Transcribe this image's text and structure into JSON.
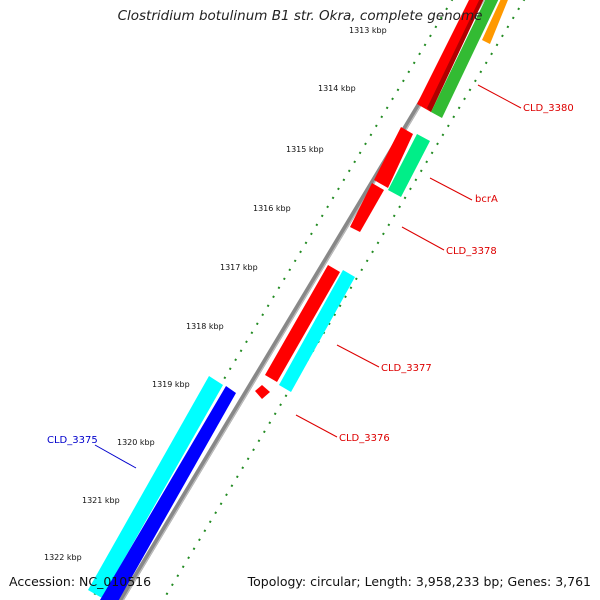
{
  "title": "Clostridium botulinum B1 str. Okra, complete genome",
  "accession_text": "Accession: NC_010516",
  "summary_text": "Topology: circular; Length: 3,958,233 bp; Genes: 3,761",
  "ticks": [
    "1313 kbp",
    "1314 kbp",
    "1315 kbp",
    "1316 kbp",
    "1317 kbp",
    "1318 kbp",
    "1319 kbp",
    "1320 kbp",
    "1321 kbp",
    "1322 kbp"
  ],
  "genes": [
    {
      "name": "CLD_3380",
      "label_color": "#dd0000"
    },
    {
      "name": "bcrA",
      "label_color": "#dd0000"
    },
    {
      "name": "CLD_3378",
      "label_color": "#dd0000"
    },
    {
      "name": "CLD_3377",
      "label_color": "#dd0000"
    },
    {
      "name": "CLD_3376",
      "label_color": "#dd0000"
    },
    {
      "name": "CLD_3375",
      "label_color": "#0000cc"
    }
  ],
  "colors": {
    "backbone": "#888888",
    "tick_marks": "#228b22",
    "forward_strand_feature": "#ff0000",
    "aux_feature_1": "#00ffff",
    "aux_feature_2": "#0000ff",
    "aux_feature_3": "#00ee88",
    "aux_feature_4": "#33bb33",
    "aux_feature_5": "#ff9900"
  }
}
